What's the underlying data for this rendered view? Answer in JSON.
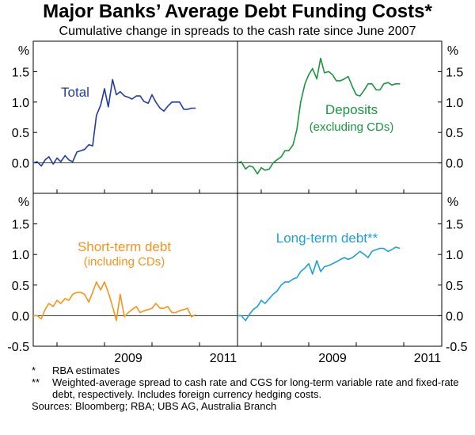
{
  "title": "Major Banks’ Average Debt Funding Costs*",
  "subtitle": "Cumulative change in spreads to the cash rate since June 2007",
  "chart_data": {
    "type": "line",
    "title": "Major Banks’ Average Debt Funding Costs*",
    "subtitle": "Cumulative change in spreads to the cash rate since June 2007",
    "ylabel": "%",
    "x_unit": "year (decimal)",
    "xlim": [
      2007.5,
      2011.8
    ],
    "ylim_top": [
      -0.5,
      2.0
    ],
    "ylim_bottom": [
      -0.5,
      2.0
    ],
    "y_ticks_top": [
      "1.5",
      "1.0",
      "0.5",
      "0.0"
    ],
    "y_ticks_bottom": [
      "1.5",
      "1.0",
      "0.5",
      "0.0",
      "-0.5"
    ],
    "x_ticks": [
      "2009",
      "2011"
    ],
    "panels": [
      {
        "name": "Total",
        "label": "Total",
        "color": "#1f3d9e",
        "x": [
          2007.5,
          2007.58,
          2007.67,
          2007.75,
          2007.83,
          2007.92,
          2008.0,
          2008.08,
          2008.17,
          2008.25,
          2008.33,
          2008.42,
          2008.5,
          2008.58,
          2008.67,
          2008.75,
          2008.83,
          2008.92,
          2009.0,
          2009.08,
          2009.17,
          2009.25,
          2009.33,
          2009.42,
          2009.5,
          2009.58,
          2009.67,
          2009.75,
          2009.83,
          2009.92,
          2010.0,
          2010.08,
          2010.17,
          2010.25,
          2010.33,
          2010.42,
          2010.5,
          2010.58,
          2010.67,
          2010.75,
          2010.83,
          2010.92
        ],
        "y": [
          0.0,
          0.02,
          -0.05,
          0.05,
          0.1,
          -0.02,
          0.08,
          0.02,
          0.12,
          0.05,
          0.02,
          0.18,
          0.2,
          0.22,
          0.3,
          0.28,
          0.78,
          0.95,
          1.22,
          0.92,
          1.37,
          1.12,
          1.17,
          1.1,
          1.08,
          1.05,
          1.1,
          1.1,
          1.01,
          0.98,
          1.12,
          1.0,
          0.9,
          0.85,
          0.93,
          1.0,
          1.0,
          1.0,
          0.88,
          0.88,
          0.9,
          0.9
        ]
      },
      {
        "name": "Deposits",
        "label": "Deposits",
        "sublabel": "(excluding CDs)",
        "color": "#1a9641",
        "x": [
          2007.5,
          2007.58,
          2007.67,
          2007.75,
          2007.83,
          2007.92,
          2008.0,
          2008.08,
          2008.17,
          2008.25,
          2008.33,
          2008.42,
          2008.5,
          2008.58,
          2008.67,
          2008.75,
          2008.83,
          2008.92,
          2009.0,
          2009.08,
          2009.17,
          2009.25,
          2009.33,
          2009.42,
          2009.5,
          2009.58,
          2009.67,
          2009.75,
          2009.83,
          2009.92,
          2010.0,
          2010.08,
          2010.17,
          2010.25,
          2010.33,
          2010.42,
          2010.5,
          2010.58,
          2010.67,
          2010.75,
          2010.83,
          2010.92
        ],
        "y": [
          0.0,
          0.02,
          -0.1,
          -0.05,
          -0.07,
          -0.18,
          -0.08,
          -0.12,
          -0.1,
          0.0,
          0.05,
          0.1,
          0.2,
          0.2,
          0.3,
          0.55,
          1.0,
          1.3,
          1.45,
          1.55,
          1.38,
          1.72,
          1.48,
          1.5,
          1.45,
          1.35,
          1.35,
          1.38,
          1.42,
          1.25,
          1.12,
          1.1,
          1.2,
          1.3,
          1.3,
          1.2,
          1.2,
          1.3,
          1.32,
          1.28,
          1.3,
          1.3
        ]
      },
      {
        "name": "Short-term debt",
        "label": "Short-term debt",
        "sublabel": "(including CDs)",
        "color": "#f7941d",
        "x": [
          2007.5,
          2007.58,
          2007.67,
          2007.75,
          2007.83,
          2007.92,
          2008.0,
          2008.08,
          2008.17,
          2008.25,
          2008.33,
          2008.42,
          2008.5,
          2008.58,
          2008.67,
          2008.75,
          2008.83,
          2008.92,
          2009.0,
          2009.08,
          2009.17,
          2009.25,
          2009.33,
          2009.42,
          2009.5,
          2009.58,
          2009.67,
          2009.75,
          2009.83,
          2009.92,
          2010.0,
          2010.08,
          2010.17,
          2010.25,
          2010.33,
          2010.42,
          2010.5,
          2010.58,
          2010.67,
          2010.75,
          2010.83,
          2010.92
        ],
        "y": [
          0.0,
          0.0,
          -0.05,
          0.1,
          0.2,
          0.15,
          0.25,
          0.2,
          0.28,
          0.25,
          0.35,
          0.38,
          0.38,
          0.35,
          0.22,
          0.38,
          0.55,
          0.42,
          0.55,
          0.38,
          0.15,
          -0.08,
          0.35,
          -0.02,
          0.05,
          0.1,
          0.15,
          0.05,
          0.08,
          0.1,
          0.12,
          0.2,
          0.12,
          0.12,
          0.15,
          0.05,
          0.05,
          0.08,
          0.1,
          0.12,
          -0.02,
          0.02
        ]
      },
      {
        "name": "Long-term debt",
        "label": "Long-term debt**",
        "color": "#1ba1db",
        "x": [
          2007.5,
          2007.58,
          2007.67,
          2007.75,
          2007.83,
          2007.92,
          2008.0,
          2008.08,
          2008.17,
          2008.25,
          2008.33,
          2008.42,
          2008.5,
          2008.58,
          2008.67,
          2008.75,
          2008.83,
          2008.92,
          2009.0,
          2009.08,
          2009.17,
          2009.25,
          2009.33,
          2009.42,
          2009.5,
          2009.58,
          2009.67,
          2009.75,
          2009.83,
          2009.92,
          2010.0,
          2010.08,
          2010.17,
          2010.25,
          2010.33,
          2010.42,
          2010.5,
          2010.58,
          2010.67,
          2010.75,
          2010.83,
          2010.92
        ],
        "y": [
          0.0,
          0.0,
          -0.08,
          0.02,
          0.1,
          0.15,
          0.25,
          0.2,
          0.28,
          0.35,
          0.4,
          0.5,
          0.55,
          0.55,
          0.6,
          0.62,
          0.72,
          0.78,
          0.85,
          0.68,
          0.9,
          0.72,
          0.8,
          0.82,
          0.85,
          0.88,
          0.92,
          0.95,
          0.92,
          0.95,
          1.0,
          1.05,
          1.0,
          0.95,
          1.05,
          1.08,
          1.1,
          1.1,
          1.05,
          1.08,
          1.12,
          1.1
        ]
      }
    ]
  },
  "notes": [
    {
      "marker": "*",
      "text": "RBA estimates"
    },
    {
      "marker": "**",
      "text": "Weighted-average spread to cash rate and CGS for long-term variable rate and fixed-rate debt, respectively. Includes foreign currency hedging costs."
    }
  ],
  "sources": "Sources: Bloomberg; RBA; UBS AG, Australia Branch"
}
